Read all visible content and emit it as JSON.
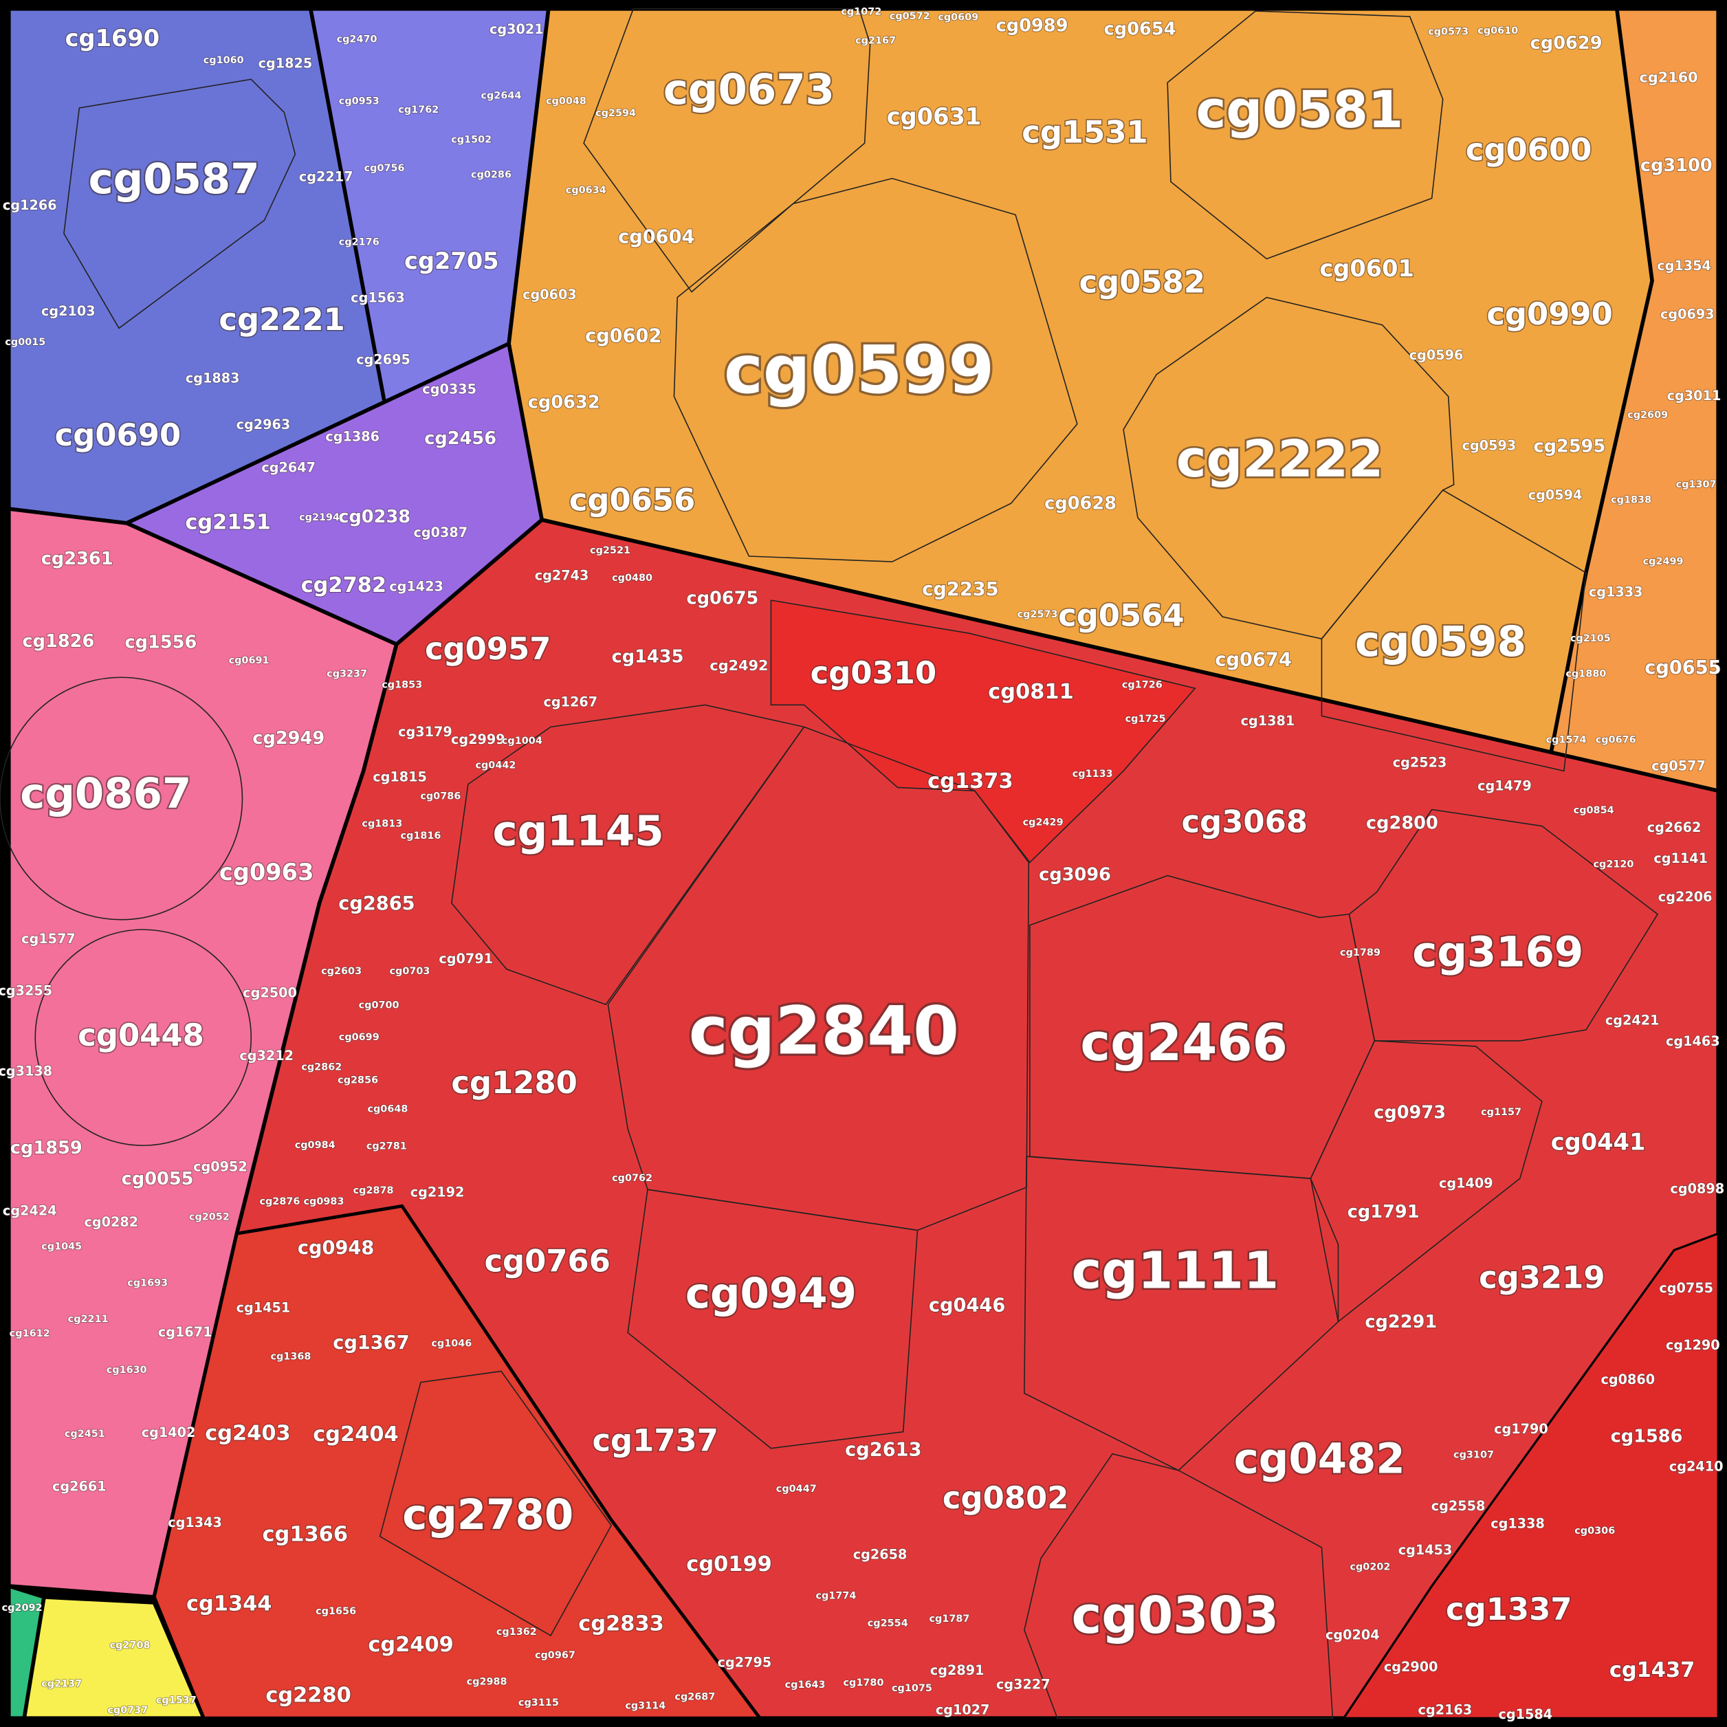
{
  "cells": [
    "cg0599",
    "cg2840",
    "cg0581",
    "cg2222",
    "cg2466",
    "cg1111",
    "cg0303",
    "cg0673",
    "cg0587",
    "cg0598",
    "cg1145",
    "cg0949",
    "cg3169",
    "cg0867",
    "cg0482",
    "cg2780",
    "cg0582",
    "cg0600",
    "cg0990",
    "cg0690",
    "cg2221",
    "cg0766",
    "cg0448",
    "cg3068",
    "cg1280",
    "cg1737",
    "cg3219",
    "cg1337",
    "cg0802",
    "cg0310",
    "cg1531",
    "cg0656",
    "cg0564",
    "cg0957",
    "cg0631",
    "cg2705",
    "cg1690",
    "cg0963",
    "cg0601",
    "cg0441",
    "cg0811",
    "cg1373",
    "cg2151",
    "cg2782",
    "cg2833",
    "cg2409",
    "cg2280",
    "cg1344",
    "cg1366",
    "cg2403",
    "cg2404",
    "cg0199",
    "cg1437",
    "cg0655",
    "cg2235",
    "cg0674",
    "cg0604",
    "cg0602",
    "cg2613",
    "cg0446",
    "cg2865",
    "cg0948",
    "cg1367",
    "cg2361",
    "cg1826",
    "cg1556",
    "cg2949",
    "cg2456",
    "cg0238",
    "cg0628",
    "cg2595",
    "cg3100",
    "cg0973",
    "cg1791",
    "cg2291",
    "cg1586",
    "cg1859",
    "cg0055",
    "cg0632",
    "cg2800",
    "cg3096",
    "cg1435",
    "cg0675",
    "cg2492",
    "cg0989",
    "cg0654",
    "cg0629",
    "cg2160",
    "cg1825",
    "cg2217",
    "cg2470",
    "cg1762",
    "cg2644",
    "cg2103",
    "cg1266",
    "cg2695",
    "cg1883",
    "cg2963",
    "cg1386",
    "cg0048",
    "cg0603",
    "cg2743",
    "cg0593",
    "cg0594",
    "cg0596",
    "cg1354",
    "cg0693",
    "cg3011",
    "cg1333",
    "cg0577",
    "cg1381",
    "cg2523",
    "cg1725",
    "cg1726",
    "cg1133",
    "cg0691",
    "cg3237",
    "cg1577",
    "cg2500",
    "cg3212",
    "cg3255",
    "cg3138",
    "cg2424",
    "cg0282",
    "cg2052",
    "cg0952",
    "cg1045",
    "cg1693",
    "cg2211",
    "cg1671",
    "cg1612",
    "cg1630",
    "cg1402",
    "cg2661",
    "cg2451",
    "cg3179",
    "cg1815",
    "cg1813",
    "cg1816",
    "cg0791",
    "cg2603",
    "cg0703",
    "cg0700",
    "cg0699",
    "cg2862",
    "cg2856",
    "cg0648",
    "cg0984",
    "cg2781",
    "cg2876",
    "cg0983",
    "cg2878",
    "cg2192",
    "cg0762",
    "cg1451",
    "cg1046",
    "cg1368",
    "cg1343",
    "cg1656",
    "cg1362",
    "cg0967",
    "cg3115",
    "cg2988",
    "cg3114",
    "cg2687",
    "cg2795",
    "cg0447",
    "cg1774",
    "cg2658",
    "cg2554",
    "cg1643",
    "cg1780",
    "cg1075",
    "cg1787",
    "cg2891",
    "cg3227",
    "cg1027",
    "cg0202",
    "cg0204",
    "cg1453",
    "cg2558",
    "cg3107",
    "cg1790",
    "cg1338",
    "cg0306",
    "cg2900",
    "cg2163",
    "cg1584",
    "cg2410",
    "cg0860",
    "cg1290",
    "cg0755",
    "cg1409",
    "cg1157",
    "cg1789",
    "cg2421",
    "cg1463",
    "cg0898",
    "cg2206",
    "cg1141",
    "cg2662",
    "cg2120",
    "cg0854",
    "cg1479",
    "cg2429",
    "cg2137",
    "cg2708",
    "cg1537",
    "cg2092",
    "cg0737",
    "cg3021",
    "cg0335",
    "cg2647",
    "cg1423",
    "cg0387",
    "cg2194",
    "cg2521",
    "cg0480",
    "cg1267",
    "cg2999",
    "cg1004",
    "cg0442",
    "cg0786",
    "cg0634",
    "cg2594",
    "cg1060",
    "cg2176",
    "cg1563",
    "cg0953",
    "cg0756",
    "cg0286",
    "cg1502",
    "cg0015",
    "cg0573",
    "cg0610",
    "cg0572",
    "cg0609",
    "cg1072",
    "cg2167",
    "cg2609",
    "cg1838",
    "cg2499",
    "cg1307",
    "cg2105",
    "cg1880",
    "cg1574",
    "cg0676",
    "cg1853",
    "cg2573"
  ]
}
